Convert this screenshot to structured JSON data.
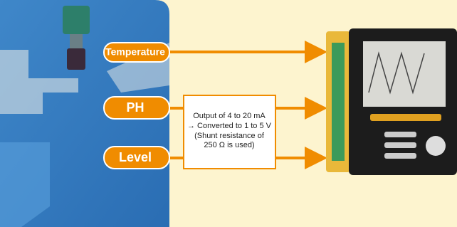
{
  "inputs": {
    "temperature": "Temperature",
    "ph": "PH",
    "level": "Level"
  },
  "converter": {
    "lines": [
      "Output of 4 to 20 mA",
      "→ Converted to 1 to 5 V",
      "(Shunt resistance of",
      "250 Ω is used)"
    ]
  }
}
